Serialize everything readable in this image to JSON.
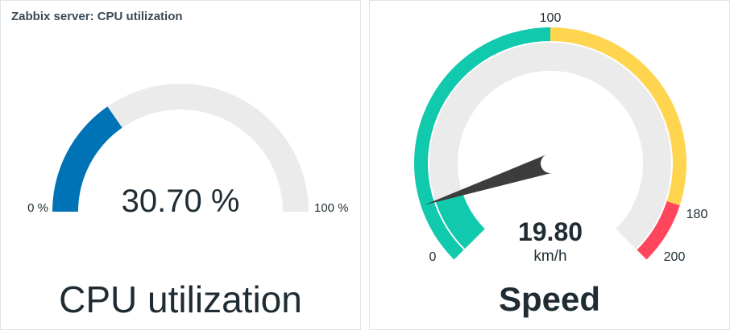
{
  "cpu_widget": {
    "header": "Zabbix server: CPU utilization",
    "value": 30.7,
    "value_text": "30.70 %",
    "min_label": "0 %",
    "max_label": "100 %",
    "min": 0,
    "max": 100,
    "description": "CPU utilization",
    "colors": {
      "value": "#0073b7",
      "empty": "#ebebeb"
    }
  },
  "speed_widget": {
    "value": 19.8,
    "value_text": "19.80",
    "units": "km/h",
    "min": 0,
    "max": 200,
    "description": "Speed",
    "scale_labels": [
      "0",
      "100",
      "180",
      "200"
    ],
    "thresholds": [
      {
        "from": 0,
        "to": 100,
        "color": "#11c9ad"
      },
      {
        "from": 100,
        "to": 180,
        "color": "#ffd54f"
      },
      {
        "from": 180,
        "to": 200,
        "color": "#ff465c"
      }
    ],
    "colors": {
      "value": "#11c9ad",
      "empty": "#ebebeb",
      "needle": "#3c3c3c"
    }
  }
}
